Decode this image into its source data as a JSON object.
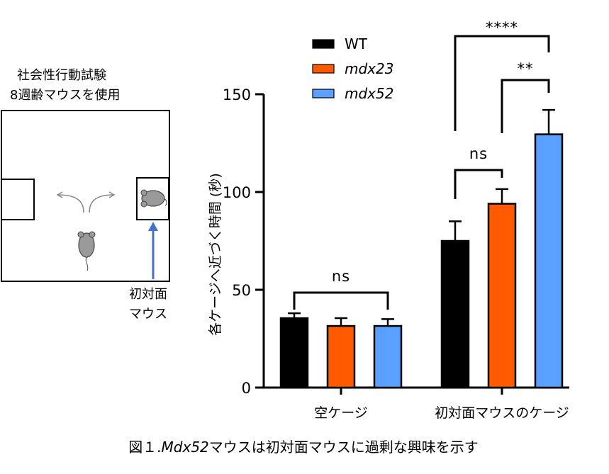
{
  "diagram": {
    "title_lines": [
      "社会性行動試験",
      "8週齢マウスを使用"
    ],
    "arrow_label_lines": [
      "初対面",
      "マウス"
    ],
    "arrow_color": "#4472c4"
  },
  "caption": {
    "prefix": "図１.",
    "italic": "Mdx52",
    "suffix": "マウスは初対面マウスに過剰な興味を示す"
  },
  "chart_data": {
    "type": "bar",
    "ylabel": "各ケージへ近づく時間 (秒)",
    "ylim": [
      0,
      150
    ],
    "yticks": [
      0,
      50,
      100,
      150
    ],
    "grid": false,
    "legend_position": "top",
    "categories": [
      "空ケージ",
      "初対面マウスのケージ"
    ],
    "series": [
      {
        "name": "WT",
        "italic": false,
        "color": "#000000",
        "values": [
          35.5,
          75
        ],
        "errors": [
          2.5,
          10
        ]
      },
      {
        "name": "mdx23",
        "italic": true,
        "color": "#ff5a00",
        "values": [
          31.5,
          94
        ],
        "errors": [
          4,
          7.5
        ]
      },
      {
        "name": "mdx52",
        "italic": true,
        "color": "#5aa0ff",
        "values": [
          31.5,
          129.5
        ],
        "errors": [
          3.5,
          12.5
        ]
      }
    ],
    "significance": [
      {
        "label": "ns",
        "category": 0,
        "from_series": 0,
        "to_series": 2
      },
      {
        "label": "ns",
        "category": 1,
        "from_series": 0,
        "to_series": 1
      },
      {
        "label": "**",
        "category": 1,
        "from_series": 1,
        "to_series": 2
      },
      {
        "label": "****",
        "category": 1,
        "from_series": 0,
        "to_series": 2
      }
    ]
  }
}
